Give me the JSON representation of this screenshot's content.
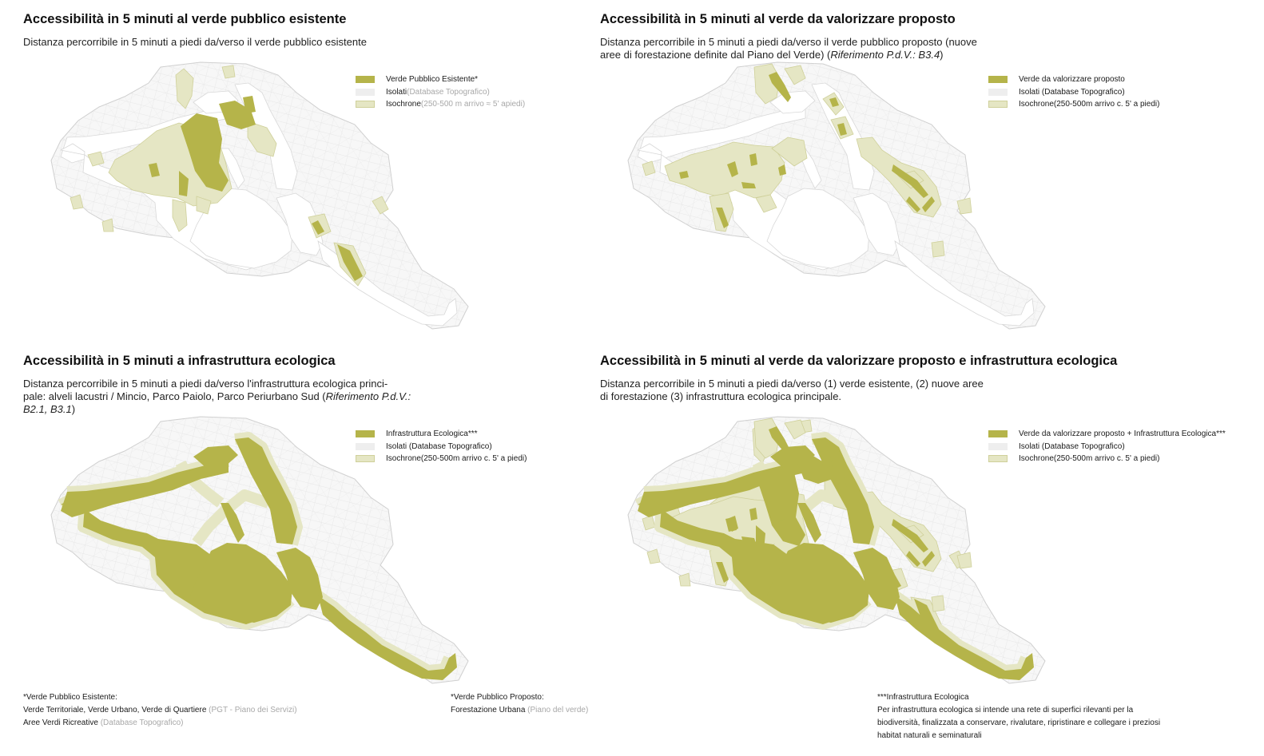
{
  "colors": {
    "green": "#b5b44a",
    "isochrone": "#e5e6c4",
    "isolati": "#eeeeee",
    "note_grey": "#a8a8a8"
  },
  "panels": [
    {
      "title": "Accessibilità in 5 minuti al verde pubblico esistente",
      "subtitle_parts": [
        {
          "text": "Distanza percorribile in 5 minuti a piedi da/verso il verde pubblico esistente"
        }
      ],
      "legend": {
        "green": {
          "label": "Verde Pubblico Esistente*",
          "note": ""
        },
        "isolati": {
          "label": "Isolati",
          "note": " (Database Topografico)"
        },
        "isochrone": {
          "label": "Isochrone",
          "note": " (250-500 m arrivo ≈ 5' apiedi)"
        }
      }
    },
    {
      "title": "Accessibilità in 5 minuti al verde da valorizzare proposto",
      "subtitle_parts": [
        {
          "text": "Distanza percorribile in 5 minuti a piedi da/verso il verde pubblico proposto (nuove"
        },
        {
          "text": "aree di forestazione definite dal Piano del Verde) ("
        },
        {
          "text": "Riferimento P.d.V.: B3.4",
          "italic": true
        },
        {
          "text": ")"
        }
      ],
      "legend": {
        "green": {
          "label": "Verde da valorizzare proposto",
          "note": ""
        },
        "isolati": {
          "label": "Isolati (Database Topografico)",
          "note": ""
        },
        "isochrone": {
          "label": "Isochrone(250-500m arrivo c. 5' a piedi)",
          "note": ""
        }
      }
    },
    {
      "title": "Accessibilità in 5 minuti a infrastruttura ecologica",
      "subtitle_parts": [
        {
          "text": "Distanza percorribile in 5 minuti a piedi da/verso l'infrastruttura ecologica princi-"
        },
        {
          "text": "pale: alveli lacustri / Mincio,  Parco Paiolo, Parco Periurbano Sud ("
        },
        {
          "text": "Riferimento P.d.V.:",
          "italic": true
        },
        {
          "text": "B2.1, B3.1",
          "italic": true
        },
        {
          "text": ")"
        }
      ],
      "legend": {
        "green": {
          "label": "Infrastruttura Ecologica***",
          "note": ""
        },
        "isolati": {
          "label": "Isolati (Database Topografico)",
          "note": ""
        },
        "isochrone": {
          "label": "Isochrone(250-500m arrivo c. 5' a piedi)",
          "note": ""
        }
      }
    },
    {
      "title": "Accessibilità in 5 minuti al verde da valorizzare proposto e infrastruttura ecologica",
      "subtitle_parts": [
        {
          "text": "Distanza percorribile in 5 minuti a piedi da/verso (1) verde esistente, (2) nuove aree"
        },
        {
          "text": "di forestazione (3) infrastruttura ecologica principale."
        }
      ],
      "legend": {
        "green": {
          "label": "Verde da valorizzare proposto + Infrastruttura Ecologica***",
          "note": ""
        },
        "isolati": {
          "label": "Isolati (Database Topografico)",
          "note": ""
        },
        "isochrone": {
          "label": "Isochrone(250-500m arrivo c. 5' a piedi)",
          "note": ""
        }
      }
    }
  ],
  "notes": {
    "n1": {
      "title": "*Verde Pubblico Esistente:",
      "line1": "Verde Territoriale, Verde Urbano, Verde di Quartiere",
      "line1_source": " (PGT - Piano dei Servizi)",
      "line2": "Aree Verdi Ricreative",
      "line2_source": " (Database Topografico)"
    },
    "n2": {
      "title": "*Verde Pubblico Proposto:",
      "line1": "Forestazione Urbana",
      "line1_source": " (Piano del verde)"
    },
    "n3": {
      "title": "***Infrastruttura Ecologica",
      "line1": "Per infrastruttura ecologica si intende una rete di superfici rilevanti per la",
      "line2": "biodiversità, finalizzata a conservare, rivalutare, ripristinare e collegare i preziosi",
      "line3": "habitat naturali e seminaturali"
    }
  }
}
